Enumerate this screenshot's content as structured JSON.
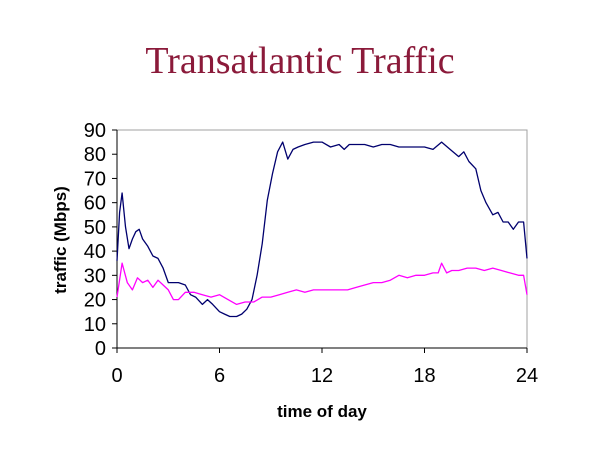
{
  "chart_data": {
    "type": "line",
    "title": "Transatlantic Traffic",
    "xlabel": "time of day",
    "ylabel": "traffic (Mbps)",
    "xlim": [
      0,
      24
    ],
    "ylim": [
      0,
      90
    ],
    "x_ticks": [
      "0",
      "6",
      "12",
      "18",
      "24"
    ],
    "y_ticks": [
      "0",
      "10",
      "20",
      "30",
      "40",
      "50",
      "60",
      "70",
      "80",
      "90"
    ],
    "grid": false,
    "legend": "none",
    "series": [
      {
        "color": "#00006e",
        "x": [
          0,
          0.15,
          0.3,
          0.5,
          0.7,
          0.9,
          1.1,
          1.3,
          1.5,
          1.8,
          2.1,
          2.4,
          2.7,
          3.0,
          3.3,
          3.6,
          4.0,
          4.3,
          4.6,
          5.0,
          5.3,
          5.6,
          6.0,
          6.3,
          6.6,
          7.0,
          7.3,
          7.6,
          7.9,
          8.2,
          8.5,
          8.8,
          9.1,
          9.4,
          9.7,
          10.0,
          10.3,
          10.6,
          11.0,
          11.5,
          12.0,
          12.5,
          13.0,
          13.3,
          13.6,
          14.0,
          14.5,
          15.0,
          15.5,
          16.0,
          16.5,
          17.0,
          17.5,
          18.0,
          18.5,
          19.0,
          19.5,
          20.0,
          20.3,
          20.6,
          21.0,
          21.3,
          21.6,
          22.0,
          22.3,
          22.6,
          22.9,
          23.2,
          23.5,
          23.8,
          24.0
        ],
        "values": [
          36,
          56,
          64,
          50,
          41,
          45,
          48,
          49,
          45,
          42,
          38,
          37,
          33,
          27,
          27,
          27,
          26,
          22,
          21,
          18,
          20,
          18,
          15,
          14,
          13,
          13,
          14,
          16,
          20,
          30,
          43,
          61,
          72,
          81,
          85,
          78,
          82,
          83,
          84,
          85,
          85,
          83,
          84,
          82,
          84,
          84,
          84,
          83,
          84,
          84,
          83,
          83,
          83,
          83,
          82,
          85,
          82,
          79,
          81,
          77,
          74,
          65,
          60,
          55,
          56,
          52,
          52,
          49,
          52,
          52,
          37
        ]
      },
      {
        "color": "#ff00ff",
        "x": [
          0,
          0.3,
          0.6,
          0.9,
          1.2,
          1.5,
          1.8,
          2.1,
          2.4,
          2.7,
          3.0,
          3.3,
          3.6,
          4.0,
          4.5,
          5.0,
          5.5,
          6.0,
          6.5,
          7.0,
          7.5,
          8.0,
          8.5,
          9.0,
          9.5,
          10.0,
          10.5,
          11.0,
          11.5,
          12.0,
          12.5,
          13.0,
          13.5,
          14.0,
          14.5,
          15.0,
          15.5,
          16.0,
          16.5,
          17.0,
          17.5,
          18.0,
          18.5,
          18.8,
          19.0,
          19.3,
          19.6,
          20.0,
          20.5,
          21.0,
          21.5,
          22.0,
          22.5,
          23.0,
          23.5,
          23.8,
          24.0
        ],
        "values": [
          21,
          35,
          27,
          24,
          29,
          27,
          28,
          25,
          28,
          26,
          24,
          20,
          20,
          23,
          23,
          22,
          21,
          22,
          20,
          18,
          19,
          19,
          21,
          21,
          22,
          23,
          24,
          23,
          24,
          24,
          24,
          24,
          24,
          25,
          26,
          27,
          27,
          28,
          30,
          29,
          30,
          30,
          31,
          31,
          35,
          31,
          32,
          32,
          33,
          33,
          32,
          33,
          32,
          31,
          30,
          30,
          22
        ]
      }
    ]
  }
}
